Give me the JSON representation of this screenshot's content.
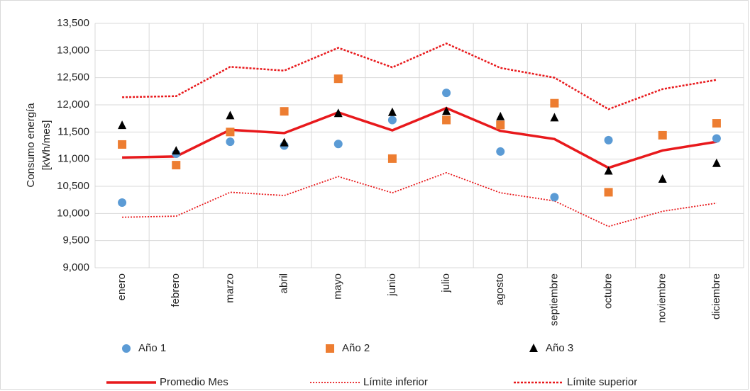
{
  "chart_data": {
    "type": "combo",
    "ylabel": [
      "Consumo energía",
      "[kWh/mes]"
    ],
    "categories": [
      "enero",
      "febrero",
      "marzo",
      "abril",
      "mayo",
      "junio",
      "julio",
      "agosto",
      "septiembre",
      "octubre",
      "noviembre",
      "diciembre"
    ],
    "ylim": [
      9000,
      13500
    ],
    "yticks": [
      {
        "value": 9000,
        "label": "9,000"
      },
      {
        "value": 9500,
        "label": "9,500"
      },
      {
        "value": 10000,
        "label": "10,000"
      },
      {
        "value": 10500,
        "label": "10,500"
      },
      {
        "value": 11000,
        "label": "11,000"
      },
      {
        "value": 11500,
        "label": "11,500"
      },
      {
        "value": 12000,
        "label": "12,000"
      },
      {
        "value": 12500,
        "label": "12,500"
      },
      {
        "value": 13000,
        "label": "13,000"
      },
      {
        "value": 13500,
        "label": "13,500"
      }
    ],
    "grid": true,
    "series": [
      {
        "name": "Año 1",
        "type": "scatter",
        "marker": "circle",
        "color": "#5b9bd5",
        "values": [
          10200,
          11100,
          11320,
          11250,
          11280,
          11720,
          12220,
          11140,
          10300,
          11350,
          null,
          11380
        ]
      },
      {
        "name": "Año 2",
        "type": "scatter",
        "marker": "square",
        "color": "#ed7d31",
        "values": [
          11270,
          10890,
          11500,
          11880,
          12480,
          11010,
          11720,
          11630,
          12030,
          10390,
          11440,
          11660
        ]
      },
      {
        "name": "Año 3",
        "type": "scatter",
        "marker": "triangle",
        "color": "#000000",
        "values": [
          11620,
          11150,
          11800,
          11300,
          11840,
          11860,
          11880,
          11780,
          11760,
          10780,
          10630,
          10920
        ]
      },
      {
        "name": "Promedio Mes",
        "type": "line",
        "dash": "solid",
        "color": "#e8191c",
        "values": [
          11030,
          11050,
          11540,
          11480,
          11860,
          11530,
          11940,
          11520,
          11370,
          10840,
          11160,
          11320
        ]
      },
      {
        "name": "Límite inferior",
        "type": "line",
        "dash": "dotted-thin",
        "color": "#e8191c",
        "values": [
          9930,
          9950,
          10390,
          10330,
          10680,
          10380,
          10750,
          10380,
          10230,
          9760,
          10040,
          10190
        ]
      },
      {
        "name": "Límite superior",
        "type": "line",
        "dash": "dotted",
        "color": "#e8191c",
        "values": [
          12140,
          12160,
          12700,
          12630,
          13050,
          12690,
          13130,
          12680,
          12500,
          11920,
          12290,
          12460
        ]
      }
    ]
  }
}
